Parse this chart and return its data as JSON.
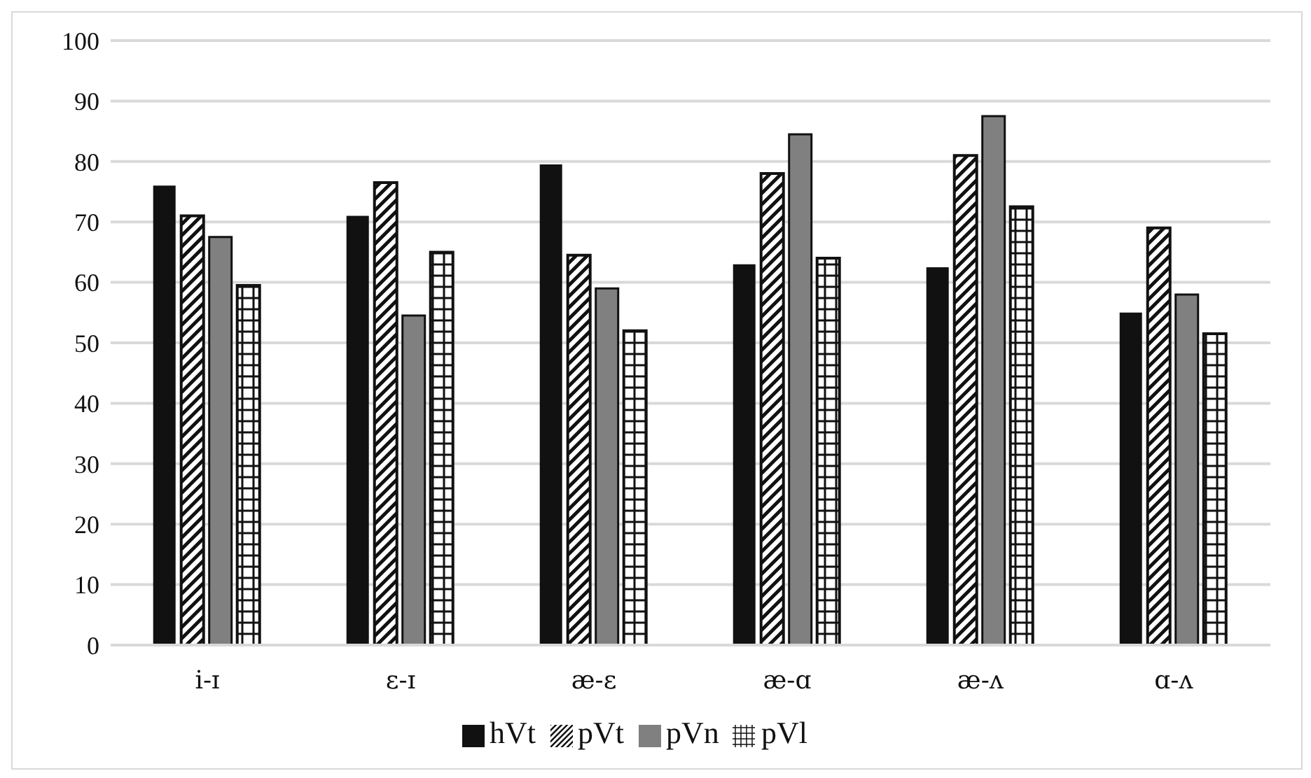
{
  "chart_data": {
    "type": "bar",
    "categories": [
      "i-ɪ",
      "ɛ-ɪ",
      "æ-ɛ",
      "æ-ɑ",
      "æ-ʌ",
      "ɑ-ʌ"
    ],
    "series": [
      {
        "name": "hVt",
        "color": "#111111",
        "values": [
          76,
          71,
          79.5,
          63,
          62.5,
          55
        ]
      },
      {
        "name": "pVt",
        "color": "#111111",
        "values": [
          71,
          76.5,
          64.5,
          78,
          81,
          69
        ]
      },
      {
        "name": "pVn",
        "color": "#808080",
        "values": [
          67.5,
          54.5,
          59,
          84.5,
          87.5,
          58
        ]
      },
      {
        "name": "pVl",
        "color": "#111111",
        "values": [
          59.5,
          65,
          52,
          64,
          72.5,
          51.5
        ]
      }
    ],
    "ylim": [
      0,
      100
    ],
    "yticks": [
      0,
      10,
      20,
      30,
      40,
      50,
      60,
      70,
      80,
      90,
      100
    ],
    "grid": "y",
    "legend": "bottom"
  }
}
